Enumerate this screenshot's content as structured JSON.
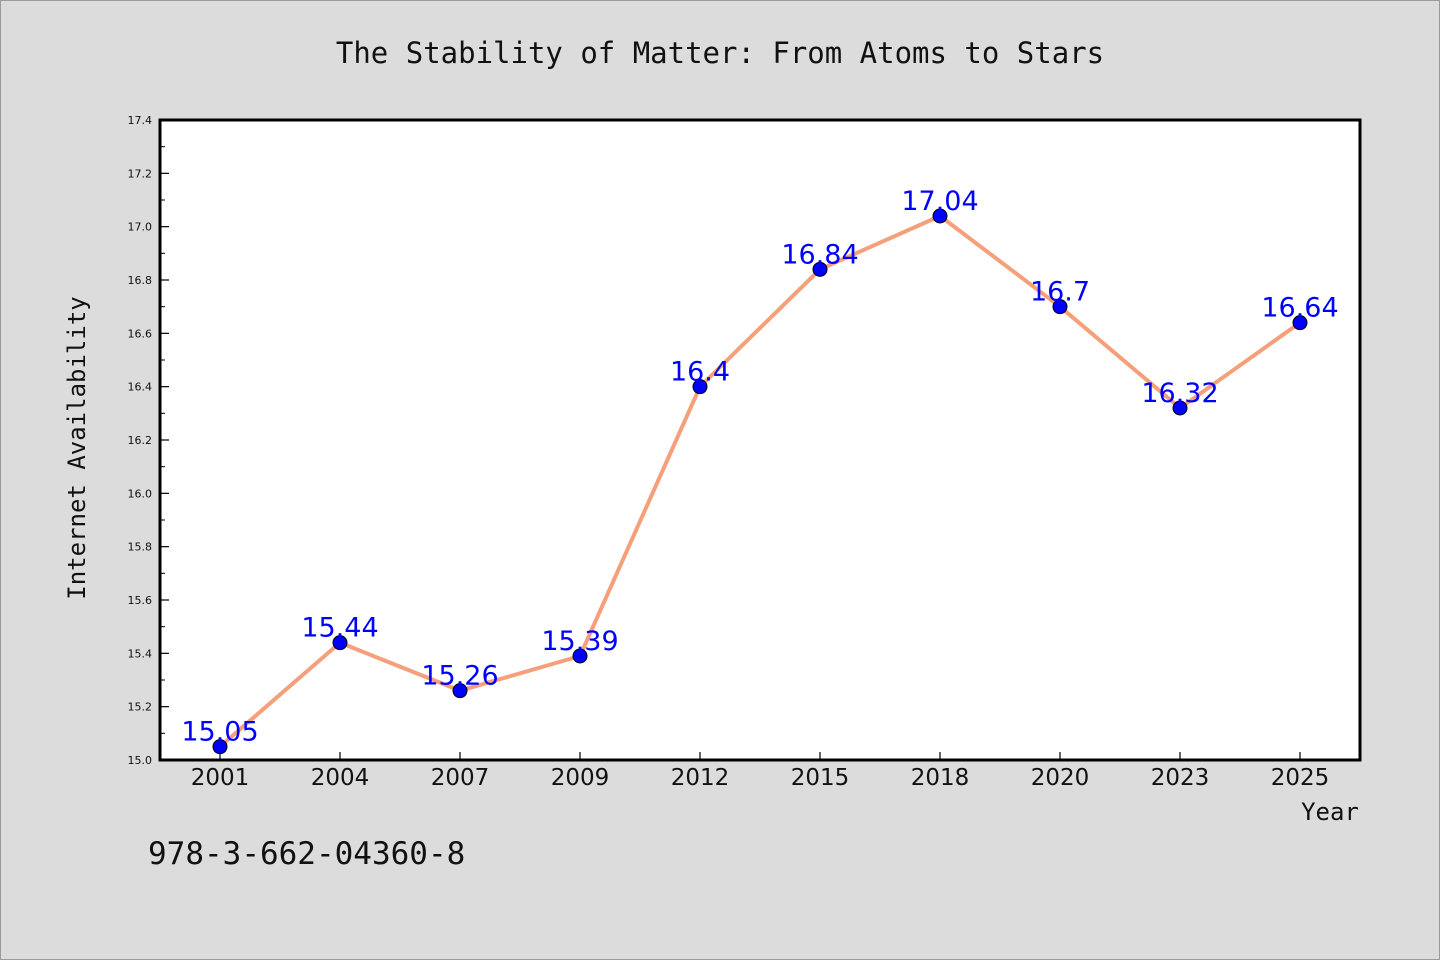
{
  "chart_data": {
    "type": "line",
    "title": "The Stability of Matter: From Atoms to Stars",
    "xlabel": "Year",
    "ylabel": "Internet Availability",
    "categories": [
      "2001",
      "2004",
      "2007",
      "2009",
      "2012",
      "2015",
      "2018",
      "2020",
      "2023",
      "2025"
    ],
    "series": [
      {
        "values": [
          15.05,
          15.44,
          15.26,
          15.39,
          16.4,
          16.84,
          17.04,
          16.7,
          16.32,
          16.64
        ]
      }
    ],
    "data_labels": [
      "15.05",
      "15.44",
      "15.26",
      "15.39",
      "16.4",
      "16.84",
      "17.04",
      "16.7",
      "16.32",
      "16.64"
    ],
    "ylim": [
      15.0,
      17.4
    ],
    "yticks": [
      "15.0",
      "15.2",
      "15.4",
      "15.6",
      "15.8",
      "16.0",
      "16.2",
      "16.4",
      "16.6",
      "16.8",
      "17.0",
      "17.2",
      "17.4"
    ],
    "grid": false,
    "legend": "none",
    "colors": {
      "line": "#f5a07a",
      "marker": "#0000ff",
      "label": "#0000ff",
      "background": "#dcdcdc",
      "plot_background": "#ffffff"
    }
  },
  "annotation": "978-3-662-04360-8"
}
